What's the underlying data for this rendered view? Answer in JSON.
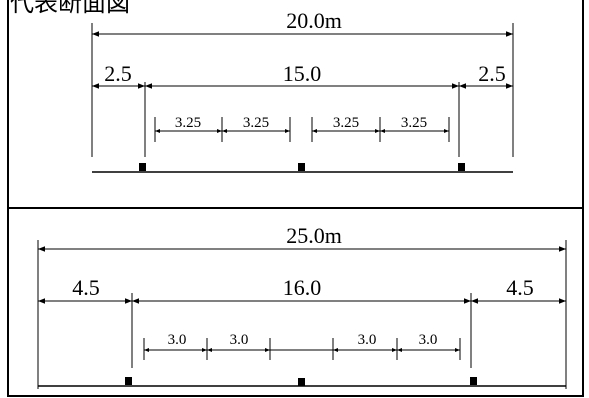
{
  "title": "代表断面図",
  "section_top": {
    "total": "20.0m",
    "left_side": "2.5",
    "center": "15.0",
    "right_side": "2.5",
    "lanes": [
      "3.25",
      "3.25",
      "3.25",
      "3.25"
    ]
  },
  "section_bottom": {
    "total": "25.0m",
    "left_side": "4.5",
    "center": "16.0",
    "right_side": "4.5",
    "lanes": [
      "3.0",
      "3.0",
      "3.0",
      "3.0"
    ]
  }
}
